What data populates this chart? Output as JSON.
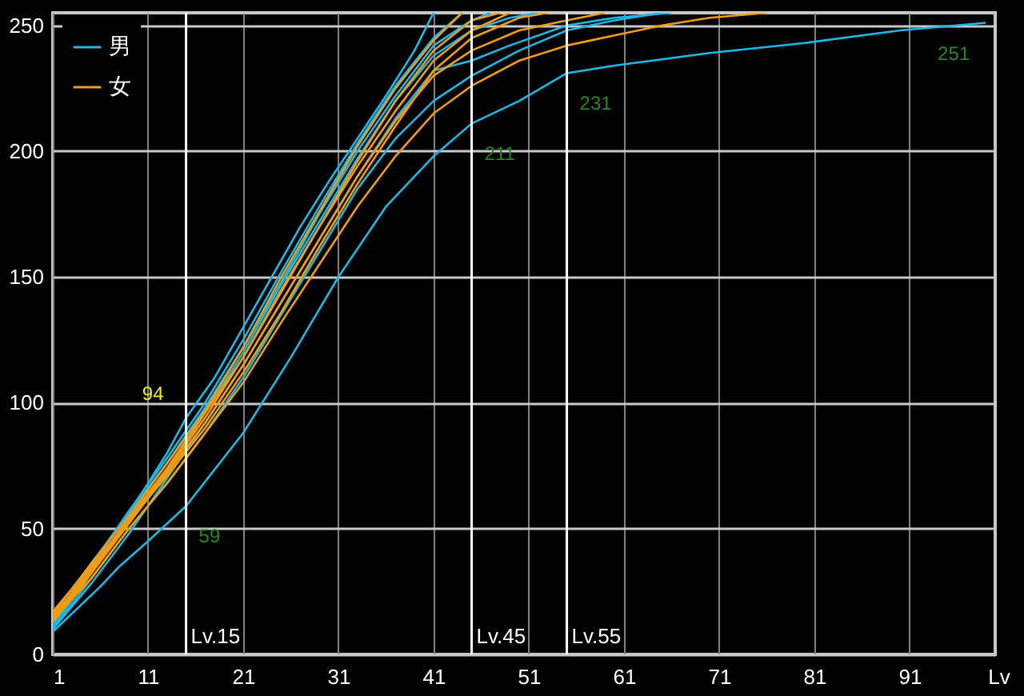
{
  "chart_data": {
    "type": "line",
    "xlabel": "Lv",
    "xlim": [
      1,
      100
    ],
    "xticks": [
      1,
      11,
      21,
      31,
      41,
      51,
      61,
      71,
      81,
      91
    ],
    "ylim": [
      0,
      255
    ],
    "yticks": [
      0,
      50,
      100,
      150,
      200,
      250
    ],
    "grid": true,
    "legend": "top left",
    "series": [
      {
        "name": "男",
        "color": "#19b9e8",
        "x": [
          1,
          4,
          7,
          10,
          13,
          15,
          18,
          21,
          24,
          27,
          30,
          33,
          36,
          39,
          41
        ],
        "values": [
          12,
          28,
          46,
          62,
          80,
          94,
          110,
          130,
          150,
          170,
          188,
          205,
          222,
          240,
          255
        ]
      },
      {
        "color": "#19b9e8",
        "x": [
          1,
          6,
          8,
          11,
          15,
          21,
          26,
          31,
          36,
          41,
          45,
          50,
          55,
          60,
          70,
          80,
          90,
          99
        ],
        "values": [
          9,
          27,
          35,
          45,
          59,
          88,
          118,
          150,
          178,
          198,
          211,
          220,
          231,
          234,
          239,
          243,
          248,
          251
        ]
      },
      {
        "color": "#19b9e8",
        "x": [
          1,
          5,
          9,
          13,
          17,
          21,
          25,
          29,
          33,
          37,
          41,
          45,
          49,
          55,
          60,
          66
        ],
        "values": [
          10,
          28,
          48,
          70,
          92,
          115,
          140,
          165,
          190,
          213,
          232,
          236,
          242,
          250,
          253,
          255
        ]
      },
      {
        "color": "#19b9e8",
        "x": [
          1,
          5,
          9,
          13,
          17,
          21,
          25,
          29,
          33,
          37,
          41,
          45,
          49,
          52
        ],
        "values": [
          11,
          32,
          54,
          72,
          96,
          120,
          147,
          172,
          197,
          220,
          238,
          248,
          253,
          255
        ]
      },
      {
        "color": "#19b9e8",
        "x": [
          1,
          5,
          9,
          13,
          17,
          21,
          25,
          29,
          33,
          37,
          41,
          44
        ],
        "values": [
          12,
          35,
          57,
          78,
          100,
          125,
          152,
          178,
          203,
          226,
          245,
          255
        ]
      },
      {
        "color": "#19b9e8",
        "x": [
          1,
          5,
          9,
          13,
          17,
          21,
          25,
          29,
          33,
          37,
          41,
          45,
          50,
          55,
          60,
          65
        ],
        "values": [
          10,
          30,
          50,
          68,
          88,
          110,
          135,
          160,
          185,
          205,
          220,
          230,
          240,
          248,
          252,
          255
        ]
      },
      {
        "color": "#19b9e8",
        "x": [
          1,
          5,
          9,
          13,
          17,
          21,
          25,
          29,
          33,
          37,
          41,
          45,
          47
        ],
        "values": [
          13,
          36,
          56,
          76,
          98,
          122,
          148,
          175,
          200,
          222,
          242,
          252,
          255
        ]
      },
      {
        "name": "女",
        "color": "#f39c12",
        "x": [
          1,
          5,
          9,
          13,
          17,
          21,
          25,
          29,
          33,
          37,
          41,
          45,
          48
        ],
        "values": [
          15,
          34,
          54,
          74,
          96,
          118,
          144,
          170,
          196,
          220,
          240,
          252,
          255
        ]
      },
      {
        "color": "#f39c12",
        "x": [
          1,
          5,
          9,
          13,
          17,
          21,
          25,
          29,
          33,
          37,
          41,
          45,
          50,
          55,
          60,
          65,
          70,
          76
        ],
        "values": [
          14,
          30,
          50,
          68,
          88,
          108,
          132,
          155,
          178,
          198,
          215,
          226,
          236,
          242,
          246,
          250,
          253,
          255
        ]
      },
      {
        "color": "#f39c12",
        "x": [
          1,
          5,
          9,
          13,
          17,
          21,
          25,
          29,
          33,
          37,
          41,
          44
        ],
        "values": [
          16,
          36,
          55,
          76,
          97,
          122,
          150,
          176,
          202,
          225,
          244,
          255
        ]
      },
      {
        "color": "#f39c12",
        "x": [
          1,
          5,
          9,
          13,
          17,
          21,
          25,
          29,
          33,
          37,
          41,
          45,
          50,
          55,
          59
        ],
        "values": [
          13,
          32,
          52,
          72,
          92,
          115,
          140,
          165,
          190,
          212,
          230,
          240,
          248,
          252,
          255
        ]
      },
      {
        "color": "#f39c12",
        "x": [
          1,
          5,
          9,
          13,
          17,
          21,
          25,
          29,
          33,
          37,
          41,
          45,
          49
        ],
        "values": [
          17,
          35,
          53,
          73,
          94,
          118,
          145,
          170,
          194,
          216,
          236,
          248,
          255
        ]
      },
      {
        "color": "#f39c12",
        "x": [
          1,
          5,
          9,
          13,
          17,
          21,
          25,
          29,
          33,
          37,
          41,
          45,
          50,
          53
        ],
        "values": [
          14,
          33,
          53,
          71,
          90,
          112,
          136,
          162,
          187,
          210,
          232,
          245,
          253,
          255
        ]
      }
    ],
    "ref_lines": [
      {
        "axis": "x",
        "value": 15,
        "label": "Lv.15"
      },
      {
        "axis": "x",
        "value": 45,
        "label": "Lv.45"
      },
      {
        "axis": "x",
        "value": 55,
        "label": "Lv.55"
      }
    ],
    "annotations": [
      {
        "text": "94",
        "x": 15,
        "y": 94
      },
      {
        "text": "59",
        "x": 15,
        "y": 59
      },
      {
        "text": "211",
        "x": 45,
        "y": 211
      },
      {
        "text": "231",
        "x": 55,
        "y": 231
      },
      {
        "text": "251",
        "x": 99,
        "y": 251
      }
    ]
  }
}
